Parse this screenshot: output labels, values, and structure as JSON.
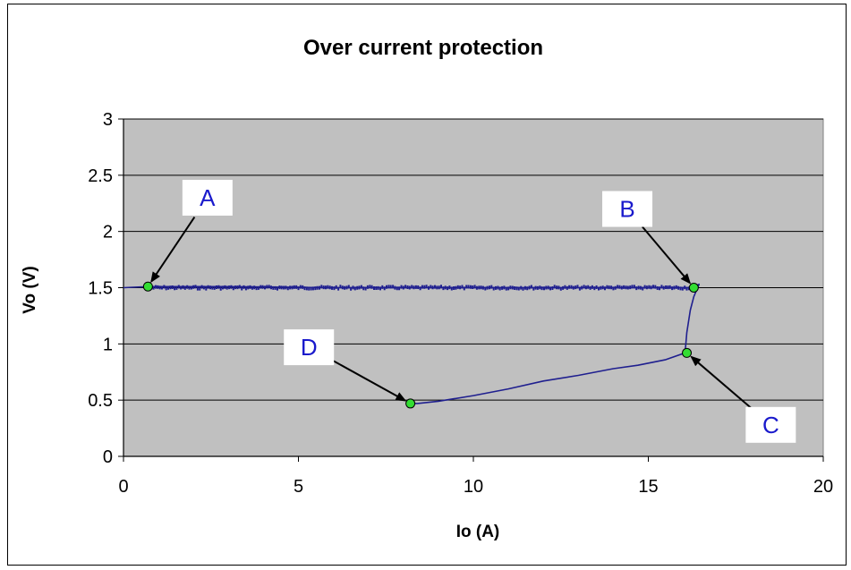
{
  "chart_data": {
    "type": "line",
    "title": "Over current protection",
    "xlabel": "Io (A)",
    "ylabel": "Vo (V)",
    "xlim": [
      0,
      20
    ],
    "ylim": [
      0,
      3
    ],
    "x_ticks": [
      "0",
      "5",
      "10",
      "15",
      "20"
    ],
    "y_ticks": [
      "0",
      "0.5",
      "1",
      "1.5",
      "2",
      "2.5",
      "3"
    ],
    "grid": true,
    "legend": "none",
    "colors": {
      "plot_area": "#c0c0c0",
      "series": "#1f1f8f",
      "marker": "#33dd33",
      "annotation_text": "#1a1acc"
    },
    "series": [
      {
        "x": [
          0,
          0.7,
          3,
          6,
          9,
          12,
          15,
          16,
          16.2,
          16.3,
          16.45,
          16.3,
          16.2,
          16.1,
          16.05,
          15.5,
          14.7,
          14,
          13,
          12,
          11,
          10,
          9,
          8.7,
          8.4,
          8.2
        ],
        "y": [
          1.5,
          1.51,
          1.51,
          1.5,
          1.5,
          1.5,
          1.5,
          1.5,
          1.5,
          1.51,
          1.53,
          1.42,
          1.3,
          1.1,
          0.92,
          0.86,
          0.81,
          0.78,
          0.72,
          0.67,
          0.6,
          0.54,
          0.49,
          0.48,
          0.47,
          0.47
        ]
      }
    ],
    "markers": [
      {
        "x": 0.7,
        "y": 1.51
      },
      {
        "x": 16.3,
        "y": 1.5
      },
      {
        "x": 16.1,
        "y": 0.92
      },
      {
        "x": 8.2,
        "y": 0.47
      }
    ],
    "annotations": [
      {
        "label": "A",
        "box_x": 2.4,
        "box_y": 2.3,
        "target_x": 0.7,
        "target_y": 1.51
      },
      {
        "label": "B",
        "box_x": 14.4,
        "box_y": 2.2,
        "target_x": 16.3,
        "target_y": 1.5
      },
      {
        "label": "C",
        "box_x": 18.5,
        "box_y": 0.28,
        "target_x": 16.1,
        "target_y": 0.92
      },
      {
        "label": "D",
        "box_x": 5.3,
        "box_y": 0.97,
        "target_x": 8.2,
        "target_y": 0.47
      }
    ]
  }
}
